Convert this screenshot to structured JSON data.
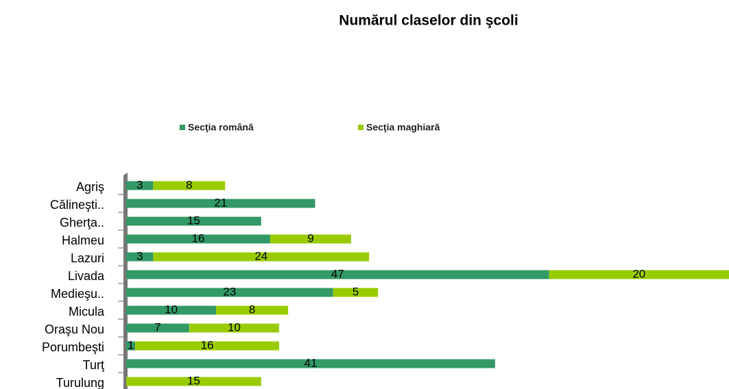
{
  "chart_data": {
    "type": "bar",
    "orientation": "horizontal",
    "stacked": true,
    "title": "Numărul claselor din şcoli",
    "categories": [
      "Agriş",
      "Călineşti..",
      "Gherţa..",
      "Halmeu",
      "Lazuri",
      "Livada",
      "Medieşu..",
      "Micula",
      "Oraşu Nou",
      "Porumbeşti",
      "Turţ",
      "Turulung"
    ],
    "series": [
      {
        "name": "Secţia română",
        "color": "#339966",
        "values": [
          3,
          21,
          15,
          16,
          3,
          47,
          23,
          10,
          7,
          1,
          41,
          null
        ]
      },
      {
        "name": "Secţia maghiară",
        "color": "#99cc00",
        "values": [
          8,
          null,
          null,
          9,
          24,
          20,
          5,
          8,
          10,
          16,
          null,
          15
        ]
      }
    ],
    "xlim": [
      0,
      67
    ],
    "legend": "top"
  }
}
